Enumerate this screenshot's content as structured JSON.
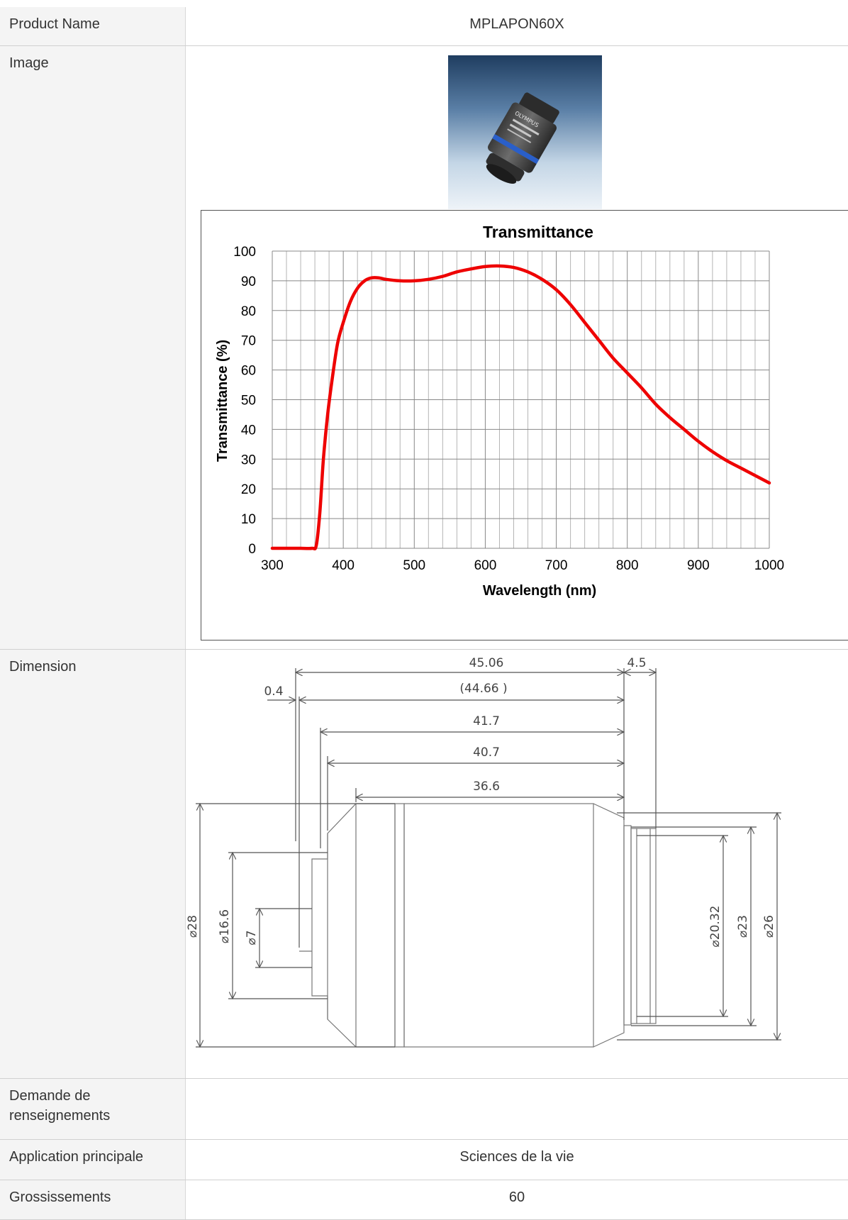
{
  "product": {
    "name_label": "Product Name",
    "name_value": "MPLAPON60X",
    "image_label": "Image",
    "photo_text": "OLYMPUS",
    "dimension_label": "Dimension",
    "inquiry_label": "Demande de renseignements",
    "inquiry_value": "",
    "application_label": "Application principale",
    "application_value": "Sciences de la vie",
    "magnification_label": "Grossissements",
    "magnification_value": "60"
  },
  "chart_data": {
    "type": "line",
    "title": "Transmittance",
    "xlabel": "Wavelength (nm)",
    "ylabel": "Transmittance (%)",
    "xlim": [
      300,
      1000
    ],
    "ylim": [
      0,
      100
    ],
    "x_ticks": [
      300,
      400,
      500,
      600,
      700,
      800,
      900,
      1000
    ],
    "y_ticks": [
      0,
      10,
      20,
      30,
      40,
      50,
      60,
      70,
      80,
      90,
      100
    ],
    "grid": true,
    "line_color": "#ee0000",
    "series": [
      {
        "x": [
          300,
          340,
          356,
          362,
          367,
          372,
          378,
          385,
          392,
          400,
          410,
          420,
          430,
          440,
          450,
          460,
          480,
          500,
          520,
          540,
          560,
          580,
          600,
          620,
          640,
          660,
          680,
          700,
          720,
          740,
          760,
          780,
          800,
          820,
          840,
          860,
          880,
          900,
          920,
          940,
          960,
          980,
          1000
        ],
        "y": [
          0,
          0,
          0,
          1,
          12,
          30,
          45,
          58,
          69,
          76,
          83,
          87.5,
          90,
          91,
          91,
          90.5,
          90,
          90,
          90.5,
          91.5,
          93,
          94,
          94.8,
          95,
          94.5,
          93,
          90.5,
          87,
          82,
          76,
          70,
          64,
          59,
          54,
          48.5,
          44,
          40,
          36,
          32.5,
          29.5,
          27,
          24.5,
          22
        ]
      }
    ]
  },
  "dimensions": {
    "overall_length": "45.06",
    "flange_length": "(44.66 )",
    "tip_offset": "0.4",
    "thread_length": "4.5",
    "length_a": "41.7",
    "length_b": "40.7",
    "length_c": "36.6",
    "dia_body": "⌀28",
    "dia_front": "⌀16.6",
    "dia_tip": "⌀7",
    "dia_thread_inner": "⌀20.32",
    "dia_thread": "⌀23",
    "dia_shoulder": "⌀26"
  }
}
